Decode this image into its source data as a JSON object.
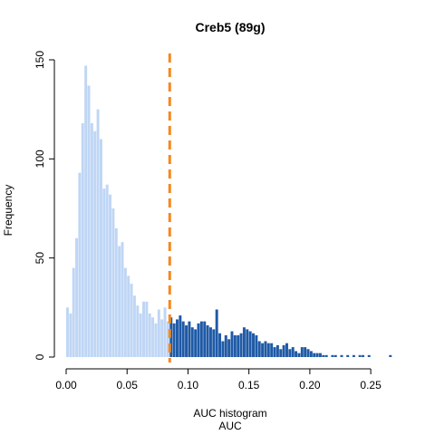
{
  "chart_data": {
    "type": "bar",
    "title": "Creb5 (89g)",
    "subtitle": "AUC histogram",
    "xlabel": "AUC",
    "ylabel": "Frequency",
    "xlim": [
      0,
      0.27
    ],
    "ylim": [
      0,
      150
    ],
    "bin_width": 0.0025,
    "x_ticks": [
      "0.00",
      "0.05",
      "0.10",
      "0.15",
      "0.20",
      "0.25"
    ],
    "y_ticks": [
      "0",
      "50",
      "100",
      "150"
    ],
    "threshold": 0.085,
    "grid": false,
    "colors": {
      "below_threshold": "#bfd6f5",
      "above_threshold": "#1f5aa6",
      "threshold_line": "#f4891f"
    },
    "bins": [
      [
        0.00125,
        25
      ],
      [
        0.00375,
        22
      ],
      [
        0.00625,
        45
      ],
      [
        0.00875,
        60
      ],
      [
        0.01125,
        93
      ],
      [
        0.01375,
        118
      ],
      [
        0.01625,
        147
      ],
      [
        0.01875,
        137
      ],
      [
        0.02125,
        118
      ],
      [
        0.02375,
        114
      ],
      [
        0.02625,
        125
      ],
      [
        0.02875,
        110
      ],
      [
        0.03125,
        85
      ],
      [
        0.03375,
        87
      ],
      [
        0.03625,
        82
      ],
      [
        0.03875,
        75
      ],
      [
        0.04125,
        65
      ],
      [
        0.04375,
        56
      ],
      [
        0.04625,
        58
      ],
      [
        0.04875,
        45
      ],
      [
        0.05125,
        41
      ],
      [
        0.05375,
        37
      ],
      [
        0.05625,
        31
      ],
      [
        0.05875,
        26
      ],
      [
        0.06125,
        22
      ],
      [
        0.06375,
        28
      ],
      [
        0.06625,
        28
      ],
      [
        0.06875,
        22
      ],
      [
        0.07125,
        20
      ],
      [
        0.07375,
        17
      ],
      [
        0.07625,
        24
      ],
      [
        0.07875,
        19
      ],
      [
        0.08125,
        25
      ],
      [
        0.08375,
        18
      ],
      [
        0.08625,
        20
      ],
      [
        0.08875,
        17
      ],
      [
        0.09125,
        19
      ],
      [
        0.09375,
        21
      ],
      [
        0.09625,
        18
      ],
      [
        0.09875,
        16
      ],
      [
        0.10125,
        18
      ],
      [
        0.10375,
        15
      ],
      [
        0.10625,
        14
      ],
      [
        0.10875,
        17
      ],
      [
        0.11125,
        18
      ],
      [
        0.11375,
        18
      ],
      [
        0.11625,
        16
      ],
      [
        0.11875,
        15
      ],
      [
        0.12125,
        14
      ],
      [
        0.12375,
        24
      ],
      [
        0.12625,
        12
      ],
      [
        0.12875,
        8
      ],
      [
        0.13125,
        11
      ],
      [
        0.13375,
        9
      ],
      [
        0.13625,
        13
      ],
      [
        0.13875,
        11
      ],
      [
        0.14125,
        11
      ],
      [
        0.14375,
        12
      ],
      [
        0.14625,
        15
      ],
      [
        0.14875,
        14
      ],
      [
        0.15125,
        13
      ],
      [
        0.15375,
        12
      ],
      [
        0.15625,
        11
      ],
      [
        0.15875,
        8
      ],
      [
        0.16125,
        7
      ],
      [
        0.16375,
        8
      ],
      [
        0.16625,
        7
      ],
      [
        0.16875,
        7
      ],
      [
        0.17125,
        5
      ],
      [
        0.17375,
        6
      ],
      [
        0.17625,
        4
      ],
      [
        0.17875,
        6
      ],
      [
        0.18125,
        7
      ],
      [
        0.18375,
        4
      ],
      [
        0.18625,
        5
      ],
      [
        0.18875,
        3
      ],
      [
        0.19125,
        2
      ],
      [
        0.19375,
        5
      ],
      [
        0.19625,
        5
      ],
      [
        0.19875,
        4
      ],
      [
        0.20125,
        3
      ],
      [
        0.20375,
        2
      ],
      [
        0.20625,
        2
      ],
      [
        0.20875,
        2
      ],
      [
        0.21125,
        1
      ],
      [
        0.21375,
        1
      ],
      [
        0.21875,
        1
      ],
      [
        0.22125,
        1
      ],
      [
        0.22625,
        1
      ],
      [
        0.23125,
        1
      ],
      [
        0.23625,
        1
      ],
      [
        0.24125,
        1
      ],
      [
        0.24375,
        1
      ],
      [
        0.24875,
        1
      ],
      [
        0.26625,
        1
      ]
    ]
  }
}
